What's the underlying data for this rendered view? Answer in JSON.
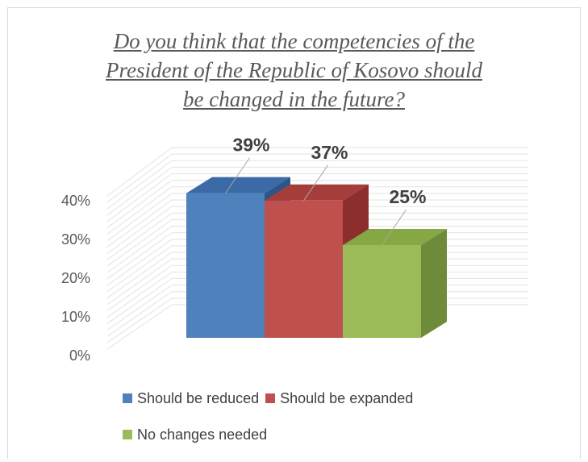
{
  "chart_data": {
    "type": "bar",
    "title_lines": [
      "Do you think that the competencies of the",
      "President of the Republic of Kosovo should",
      "be changed in the future?"
    ],
    "categories": [
      "Should be reduced",
      "Should be expanded",
      "No changes needed"
    ],
    "values": [
      39,
      37,
      25
    ],
    "data_labels": [
      "39%",
      "37%",
      "25%"
    ],
    "y_ticks": [
      "0%",
      "10%",
      "20%",
      "30%",
      "40%"
    ],
    "ylim": [
      0,
      40
    ],
    "grid": true,
    "legend_position": "bottom",
    "colors": {
      "front": [
        "#4f81bd",
        "#c0504d",
        "#9bbb59"
      ],
      "top": [
        "#3c6aa6",
        "#a53e3b",
        "#85a845"
      ],
      "side": [
        "#2e5587",
        "#8c2f2c",
        "#6e8b39"
      ]
    }
  }
}
